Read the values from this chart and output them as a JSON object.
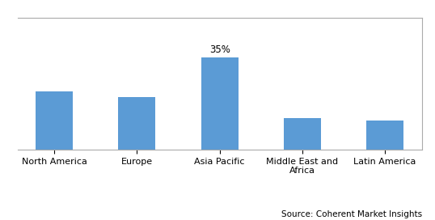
{
  "categories": [
    "North America",
    "Europe",
    "Asia Pacific",
    "Middle East and\nAfrica",
    "Latin America"
  ],
  "values": [
    22,
    20,
    35,
    12,
    11
  ],
  "bar_color": "#5B9BD5",
  "label_only_index": 2,
  "label_text": "35%",
  "ylim": [
    0,
    50
  ],
  "background_color": "#ffffff",
  "border_color": "#aaaaaa",
  "source_text": "Source: Coherent Market Insights",
  "source_fontsize": 7.5,
  "bar_width": 0.45,
  "tick_fontsize": 8,
  "label_fontsize": 8.5
}
